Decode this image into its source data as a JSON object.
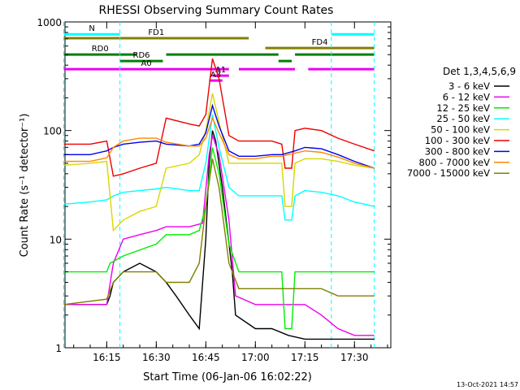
{
  "chart_data": {
    "type": "line",
    "title": "RHESSI Observing Summary Count Rates",
    "xlabel": "Start Time (06-Jan-06 16:02:22)",
    "ylabel": "Count Rate (s⁻¹ detector⁻¹)",
    "ylog": true,
    "ylim": [
      1,
      1000
    ],
    "xlim": [
      "16:02:22",
      "17:41:00"
    ],
    "x_ticks": [
      "16:15",
      "16:30",
      "16:45",
      "17:00",
      "17:15",
      "17:30"
    ],
    "y_ticks": [
      "1",
      "10",
      "100",
      "1000"
    ],
    "footer_date": "13-Oct-2021 14:57",
    "legend": {
      "title": "Det 1,3,4,5,6,9",
      "placement": "right",
      "entries": [
        {
          "label": "3 - 6 keV",
          "color": "#000000"
        },
        {
          "label": "6 - 12 keV",
          "color": "#ee00ee"
        },
        {
          "label": "12 - 25 keV",
          "color": "#00ee00"
        },
        {
          "label": "25 - 50 keV",
          "color": "#00ffff"
        },
        {
          "label": "50 - 100 keV",
          "color": "#d8d800"
        },
        {
          "label": "100 - 300 keV",
          "color": "#ee0000"
        },
        {
          "label": "300 - 800 keV",
          "color": "#0000ee"
        },
        {
          "label": "800 - 7000 keV",
          "color": "#ff8800"
        },
        {
          "label": "7000 - 15000 keV",
          "color": "#808000"
        }
      ]
    },
    "series": [
      {
        "name": "3 - 6 keV",
        "color": "#000000",
        "points": [
          [
            "16:02",
            2.5
          ],
          [
            "16:15",
            2.5
          ],
          [
            "16:16",
            3
          ],
          [
            "16:17",
            4
          ],
          [
            "16:20",
            5
          ],
          [
            "16:25",
            6
          ],
          [
            "16:30",
            5
          ],
          [
            "16:33",
            4
          ],
          [
            "16:36",
            3
          ],
          [
            "16:40",
            2
          ],
          [
            "16:43",
            1.5
          ],
          [
            "16:45",
            10
          ],
          [
            "16:46",
            50
          ],
          [
            "16:47",
            100
          ],
          [
            "16:48",
            80
          ],
          [
            "16:50",
            30
          ],
          [
            "16:53",
            5
          ],
          [
            "16:54",
            2
          ],
          [
            "17:00",
            1.5
          ],
          [
            "17:05",
            1.5
          ],
          [
            "17:10",
            1.3
          ],
          [
            "17:15",
            1.2
          ],
          [
            "17:20",
            1.2
          ],
          [
            "17:25",
            1.2
          ],
          [
            "17:30",
            1.2
          ],
          [
            "17:36",
            1.2
          ]
        ]
      },
      {
        "name": "6 - 12 keV",
        "color": "#ee00ee",
        "points": [
          [
            "16:02",
            2.5
          ],
          [
            "16:15",
            2.5
          ],
          [
            "16:17",
            6
          ],
          [
            "16:20",
            10
          ],
          [
            "16:25",
            11
          ],
          [
            "16:30",
            12
          ],
          [
            "16:33",
            13
          ],
          [
            "16:40",
            13
          ],
          [
            "16:44",
            14
          ],
          [
            "16:46",
            60
          ],
          [
            "16:47",
            90
          ],
          [
            "16:49",
            60
          ],
          [
            "16:52",
            15
          ],
          [
            "16:54",
            3
          ],
          [
            "17:00",
            2.5
          ],
          [
            "17:05",
            2.5
          ],
          [
            "17:10",
            2.5
          ],
          [
            "17:15",
            2.5
          ],
          [
            "17:20",
            2
          ],
          [
            "17:25",
            1.5
          ],
          [
            "17:30",
            1.3
          ],
          [
            "17:36",
            1.3
          ]
        ]
      },
      {
        "name": "12 - 25 keV",
        "color": "#00ee00",
        "points": [
          [
            "16:02",
            5
          ],
          [
            "16:15",
            5
          ],
          [
            "16:16",
            6
          ],
          [
            "16:20",
            7
          ],
          [
            "16:30",
            9
          ],
          [
            "16:33",
            11
          ],
          [
            "16:40",
            11
          ],
          [
            "16:43",
            12
          ],
          [
            "16:45",
            20
          ],
          [
            "16:47",
            70
          ],
          [
            "16:49",
            40
          ],
          [
            "16:52",
            9
          ],
          [
            "16:55",
            5
          ],
          [
            "17:00",
            5
          ],
          [
            "17:05",
            5
          ],
          [
            "17:08",
            5
          ],
          [
            "17:09",
            1.5
          ],
          [
            "17:11",
            1.5
          ],
          [
            "17:12",
            5
          ],
          [
            "17:15",
            5
          ],
          [
            "17:20",
            5
          ],
          [
            "17:25",
            5
          ],
          [
            "17:30",
            5
          ],
          [
            "17:36",
            5
          ]
        ]
      },
      {
        "name": "25 - 50 keV",
        "color": "#00ffff",
        "points": [
          [
            "16:02",
            21
          ],
          [
            "16:10",
            22
          ],
          [
            "16:15",
            23
          ],
          [
            "16:17",
            25
          ],
          [
            "16:20",
            27
          ],
          [
            "16:25",
            28
          ],
          [
            "16:30",
            29
          ],
          [
            "16:33",
            30
          ],
          [
            "16:40",
            28
          ],
          [
            "16:43",
            28
          ],
          [
            "16:45",
            50
          ],
          [
            "16:47",
            140
          ],
          [
            "16:49",
            70
          ],
          [
            "16:52",
            30
          ],
          [
            "16:55",
            25
          ],
          [
            "17:00",
            25
          ],
          [
            "17:05",
            25
          ],
          [
            "17:08",
            25
          ],
          [
            "17:09",
            15
          ],
          [
            "17:11",
            15
          ],
          [
            "17:12",
            25
          ],
          [
            "17:15",
            28
          ],
          [
            "17:20",
            27
          ],
          [
            "17:25",
            25
          ],
          [
            "17:30",
            22
          ],
          [
            "17:36",
            20
          ]
        ]
      },
      {
        "name": "50 - 100 keV",
        "color": "#d8d800",
        "points": [
          [
            "16:02",
            48
          ],
          [
            "16:10",
            50
          ],
          [
            "16:15",
            52
          ],
          [
            "16:17",
            12
          ],
          [
            "16:20",
            15
          ],
          [
            "16:25",
            18
          ],
          [
            "16:30",
            20
          ],
          [
            "16:33",
            45
          ],
          [
            "16:40",
            50
          ],
          [
            "16:43",
            60
          ],
          [
            "16:45",
            100
          ],
          [
            "16:47",
            220
          ],
          [
            "16:49",
            120
          ],
          [
            "16:52",
            50
          ],
          [
            "16:55",
            50
          ],
          [
            "17:00",
            50
          ],
          [
            "17:05",
            50
          ],
          [
            "17:08",
            50
          ],
          [
            "17:09",
            20
          ],
          [
            "17:11",
            20
          ],
          [
            "17:12",
            50
          ],
          [
            "17:15",
            55
          ],
          [
            "17:20",
            55
          ],
          [
            "17:25",
            52
          ],
          [
            "17:30",
            48
          ],
          [
            "17:36",
            45
          ]
        ]
      },
      {
        "name": "100 - 300 keV",
        "color": "#ee0000",
        "points": [
          [
            "16:02",
            75
          ],
          [
            "16:10",
            75
          ],
          [
            "16:15",
            80
          ],
          [
            "16:17",
            38
          ],
          [
            "16:20",
            40
          ],
          [
            "16:25",
            45
          ],
          [
            "16:30",
            50
          ],
          [
            "16:33",
            130
          ],
          [
            "16:40",
            115
          ],
          [
            "16:43",
            110
          ],
          [
            "16:45",
            140
          ],
          [
            "16:47",
            460
          ],
          [
            "16:49",
            300
          ],
          [
            "16:52",
            90
          ],
          [
            "16:55",
            80
          ],
          [
            "17:00",
            80
          ],
          [
            "17:05",
            80
          ],
          [
            "17:08",
            75
          ],
          [
            "17:09",
            45
          ],
          [
            "17:11",
            45
          ],
          [
            "17:12",
            100
          ],
          [
            "17:15",
            105
          ],
          [
            "17:20",
            100
          ],
          [
            "17:25",
            85
          ],
          [
            "17:30",
            75
          ],
          [
            "17:36",
            65
          ]
        ]
      },
      {
        "name": "300 - 800 keV",
        "color": "#0000ee",
        "points": [
          [
            "16:02",
            60
          ],
          [
            "16:10",
            60
          ],
          [
            "16:15",
            65
          ],
          [
            "16:17",
            70
          ],
          [
            "16:20",
            75
          ],
          [
            "16:25",
            78
          ],
          [
            "16:30",
            80
          ],
          [
            "16:33",
            75
          ],
          [
            "16:40",
            72
          ],
          [
            "16:43",
            75
          ],
          [
            "16:45",
            95
          ],
          [
            "16:47",
            170
          ],
          [
            "16:49",
            110
          ],
          [
            "16:52",
            65
          ],
          [
            "16:55",
            58
          ],
          [
            "17:00",
            58
          ],
          [
            "17:05",
            60
          ],
          [
            "17:08",
            60
          ],
          [
            "17:12",
            65
          ],
          [
            "17:15",
            70
          ],
          [
            "17:20",
            68
          ],
          [
            "17:25",
            60
          ],
          [
            "17:30",
            52
          ],
          [
            "17:36",
            45
          ]
        ]
      },
      {
        "name": "800 - 7000 keV",
        "color": "#ff8800",
        "points": [
          [
            "16:02",
            52
          ],
          [
            "16:10",
            52
          ],
          [
            "16:15",
            56
          ],
          [
            "16:17",
            70
          ],
          [
            "16:20",
            80
          ],
          [
            "16:25",
            85
          ],
          [
            "16:30",
            85
          ],
          [
            "16:33",
            78
          ],
          [
            "16:40",
            72
          ],
          [
            "16:43",
            72
          ],
          [
            "16:45",
            85
          ],
          [
            "16:47",
            130
          ],
          [
            "16:49",
            95
          ],
          [
            "16:52",
            60
          ],
          [
            "16:55",
            55
          ],
          [
            "17:00",
            55
          ],
          [
            "17:05",
            58
          ],
          [
            "17:08",
            58
          ],
          [
            "17:12",
            62
          ],
          [
            "17:15",
            65
          ],
          [
            "17:20",
            63
          ],
          [
            "17:25",
            57
          ],
          [
            "17:30",
            50
          ],
          [
            "17:36",
            45
          ]
        ]
      },
      {
        "name": "7000 - 15000 keV",
        "color": "#808000",
        "points": [
          [
            "16:02",
            2.5
          ],
          [
            "16:15",
            2.8
          ],
          [
            "16:17",
            4
          ],
          [
            "16:20",
            5
          ],
          [
            "16:25",
            5
          ],
          [
            "16:30",
            5
          ],
          [
            "16:33",
            4
          ],
          [
            "16:40",
            4
          ],
          [
            "16:43",
            6
          ],
          [
            "16:45",
            20
          ],
          [
            "16:47",
            55
          ],
          [
            "16:49",
            30
          ],
          [
            "16:52",
            6
          ],
          [
            "16:55",
            3.5
          ],
          [
            "17:00",
            3.5
          ],
          [
            "17:05",
            3.5
          ],
          [
            "17:10",
            3.5
          ],
          [
            "17:15",
            3.5
          ],
          [
            "17:20",
            3.5
          ],
          [
            "17:25",
            3
          ],
          [
            "17:30",
            3
          ],
          [
            "17:36",
            3
          ]
        ]
      }
    ],
    "flags": [
      {
        "label": "N",
        "color": "#00ffff",
        "segments": [
          [
            "16:02",
            "16:19"
          ],
          [
            "17:23",
            "17:36"
          ]
        ]
      },
      {
        "label": "FD1",
        "color": "#808000",
        "segments": [
          [
            "16:02",
            "16:58"
          ]
        ]
      },
      {
        "label": "FD4",
        "color": "#808000",
        "segments": [
          [
            "17:03",
            "17:36"
          ]
        ]
      },
      {
        "label": "RD0",
        "color": "#008000",
        "segments": [
          [
            "16:02",
            "16:24"
          ],
          [
            "16:33",
            "17:07"
          ],
          [
            "17:12",
            "17:36"
          ]
        ]
      },
      {
        "label": "RD6",
        "color": "#008000",
        "segments": [
          [
            "16:19",
            "16:32"
          ],
          [
            "17:07",
            "17:11"
          ]
        ]
      },
      {
        "label": "A0",
        "color": "#ee00ee",
        "segments": [
          [
            "16:02",
            "16:52"
          ],
          [
            "16:55",
            "17:12"
          ],
          [
            "17:16",
            "17:36"
          ]
        ]
      },
      {
        "label": "A1",
        "color": "#ee00ee",
        "segments": [
          [
            "16:47",
            "16:52"
          ]
        ]
      },
      {
        "label": "A3",
        "color": "#ee00ee",
        "segments": [
          [
            "16:46",
            "16:50"
          ]
        ]
      }
    ]
  }
}
